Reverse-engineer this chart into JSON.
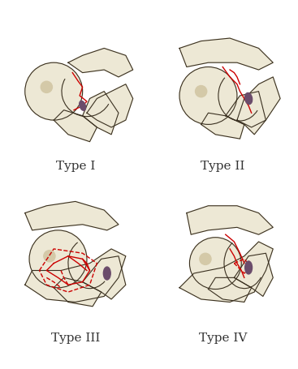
{
  "background_color": "#ffffff",
  "bone_fill": "#ede8d5",
  "bone_outline": "#3a3020",
  "bone_shading": "#d4c9a8",
  "red_fracture": "#cc0000",
  "purple_accent": "#6b4c6b",
  "labels": [
    "Type I",
    "Type II",
    "Type III",
    "Type IV"
  ],
  "label_fontsize": 11,
  "label_color": "#333333",
  "fig_width": 3.67,
  "fig_height": 4.55,
  "dpi": 100
}
